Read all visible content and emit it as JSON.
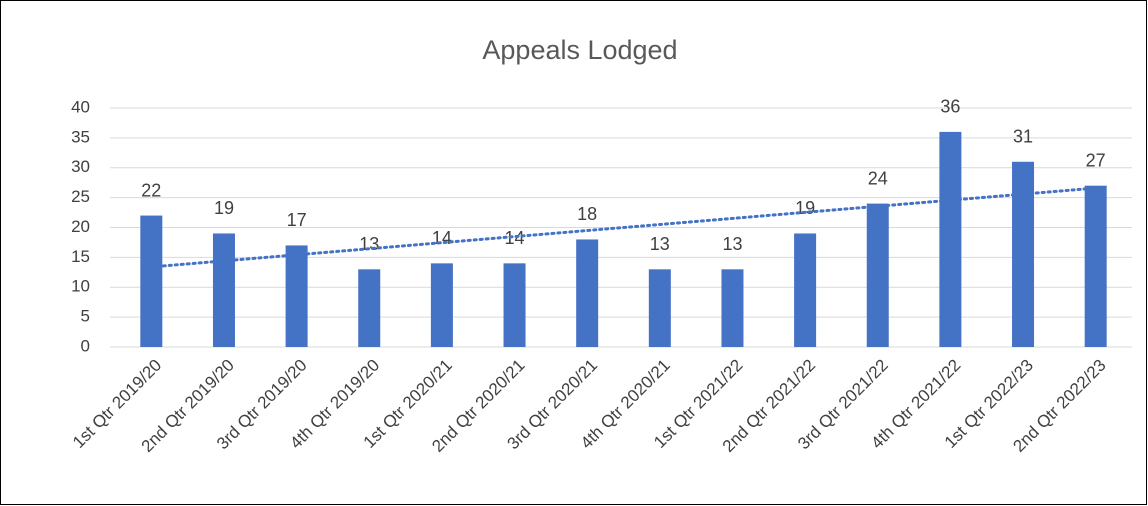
{
  "chart_data": {
    "type": "bar",
    "title": "Appeals Lodged",
    "categories": [
      "1st Qtr 2019/20",
      "2nd Qtr 2019/20",
      "3rd Qtr 2019/20",
      "4th Qtr 2019/20",
      "1st Qtr 2020/21",
      "2nd Qtr 2020/21",
      "3rd Qtr 2020/21",
      "4th Qtr 2020/21",
      "1st Qtr 2021/22",
      "2nd Qtr 2021/22",
      "3rd Qtr 2021/22",
      "4th Qtr 2021/22",
      "1st Qtr 2022/23",
      "2nd Qtr 2022/23"
    ],
    "values": [
      22,
      19,
      17,
      13,
      14,
      14,
      18,
      13,
      13,
      19,
      24,
      36,
      31,
      27
    ],
    "color": "#4472c4",
    "ylim": [
      0,
      40
    ],
    "yticks": [
      0,
      5,
      10,
      15,
      20,
      25,
      30,
      35,
      40
    ],
    "grid": true,
    "data_labels": true,
    "trendline": "linear",
    "trendline_color": "#4472c4"
  }
}
